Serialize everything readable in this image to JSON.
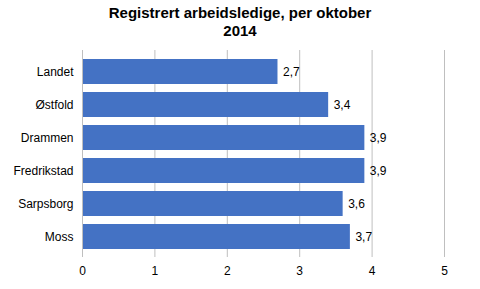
{
  "chart_data": {
    "type": "bar",
    "orientation": "horizontal",
    "title": "Registrert arbeidsledige, per oktober\n2014",
    "categories": [
      "Landet",
      "Østfold",
      "Drammen",
      "Fredrikstad",
      "Sarpsborg",
      "Moss"
    ],
    "values": [
      2.7,
      3.4,
      3.9,
      3.9,
      3.6,
      3.7
    ],
    "value_labels": [
      "2,7",
      "3,4",
      "3,9",
      "3,9",
      "3,6",
      "3,7"
    ],
    "data_labels": true,
    "color": "#4472C4",
    "xlim": [
      0,
      5
    ],
    "xticks": [
      0,
      1,
      2,
      3,
      4,
      5
    ],
    "grid": true
  }
}
